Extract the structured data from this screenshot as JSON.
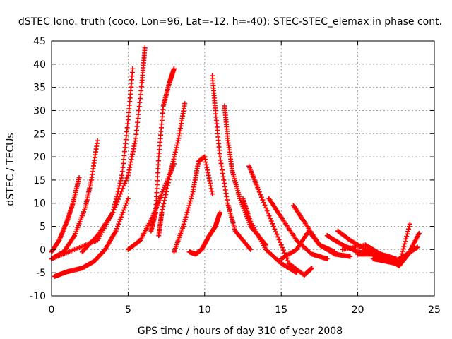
{
  "chart_data": {
    "type": "scatter",
    "title": "dSTEC Iono. truth (coco, Lon=96, Lat=-12, h=-40): STEC-STEC_elemax in phase cont.",
    "xlabel": "GPS time / hours of day 310 of year 2008",
    "ylabel": "dSTEC  / TECUs",
    "xlim": [
      0,
      25
    ],
    "ylim": [
      -10,
      45
    ],
    "xticks": [
      0,
      5,
      10,
      15,
      20,
      25
    ],
    "yticks": [
      -10,
      -5,
      0,
      5,
      10,
      15,
      20,
      25,
      30,
      35,
      40,
      45
    ],
    "grid": true,
    "marker": "+",
    "color": "#ff0000",
    "series": [
      {
        "x": [
          0,
          0.5,
          1.0,
          1.4,
          1.8
        ],
        "y": [
          -0.5,
          2,
          6,
          10,
          15.5
        ]
      },
      {
        "x": [
          0,
          0.8,
          1.5,
          2.2,
          2.6,
          3.0
        ],
        "y": [
          -2,
          -0.5,
          3,
          9,
          15,
          23.5
        ]
      },
      {
        "x": [
          0.2,
          1.0,
          2.0,
          2.8,
          3.5,
          4.2,
          5.0
        ],
        "y": [
          -5.8,
          -4.8,
          -4,
          -2.5,
          0,
          4,
          11
        ]
      },
      {
        "x": [
          0,
          1.5,
          3.0,
          4.0,
          4.6,
          5.0,
          5.3
        ],
        "y": [
          -2,
          0,
          2,
          8,
          16,
          28,
          39
        ]
      },
      {
        "x": [
          2.0,
          3.0,
          4.0,
          5.0,
          5.5,
          5.9,
          6.1
        ],
        "y": [
          -0.5,
          3,
          8,
          16,
          24,
          36,
          43.5
        ]
      },
      {
        "x": [
          5.0,
          5.8,
          6.6,
          7.2,
          8.0
        ],
        "y": [
          0,
          2,
          7,
          12,
          18.5
        ]
      },
      {
        "x": [
          6.5,
          6.8,
          7.0,
          7.3,
          7.7,
          8.0
        ],
        "y": [
          4,
          8,
          20,
          31,
          36,
          39
        ]
      },
      {
        "x": [
          7.0,
          7.2,
          7.8,
          8.3,
          8.7
        ],
        "y": [
          3,
          8,
          17,
          24,
          31.5
        ]
      },
      {
        "x": [
          9.0,
          9.4,
          9.8,
          10.3,
          10.7,
          11.0
        ],
        "y": [
          -0.5,
          -1,
          0,
          3,
          5,
          8
        ]
      },
      {
        "x": [
          8.0,
          8.6,
          9.2,
          9.6,
          10.0,
          10.5
        ],
        "y": [
          -0.5,
          5,
          12,
          19,
          20,
          12
        ]
      },
      {
        "x": [
          10.5,
          10.7,
          11.0,
          11.5,
          12.0,
          13.0
        ],
        "y": [
          37.5,
          30,
          20,
          10,
          4,
          0
        ]
      },
      {
        "x": [
          11.3,
          11.5,
          11.8,
          12.3,
          13.0,
          14.0
        ],
        "y": [
          31,
          24,
          17,
          11,
          5,
          1
        ]
      },
      {
        "x": [
          12.5,
          13.0,
          14.0,
          15.0,
          16.0
        ],
        "y": [
          11,
          6,
          0,
          -3,
          -5
        ]
      },
      {
        "x": [
          12.9,
          13.5,
          14.5,
          15.5,
          16.5,
          17.0
        ],
        "y": [
          18,
          13,
          5,
          -3,
          -5.5,
          -4
        ]
      },
      {
        "x": [
          14.2,
          15.0,
          16.0,
          17.0,
          18.0
        ],
        "y": [
          11,
          7,
          2,
          -1,
          -2
        ]
      },
      {
        "x": [
          15.8,
          16.5,
          17.5,
          18.5,
          19.5
        ],
        "y": [
          9.5,
          6,
          1,
          -1,
          -1.5
        ]
      },
      {
        "x": [
          15.0,
          16.0,
          16.8,
          17.5,
          18.5
        ],
        "y": [
          -2,
          0,
          4,
          1,
          -0.5
        ]
      },
      {
        "x": [
          18.0,
          19.0,
          20.0,
          21.0,
          22.0
        ],
        "y": [
          3,
          1,
          -0.5,
          -1,
          -1.5
        ]
      },
      {
        "x": [
          18.7,
          19.5,
          20.5,
          21.5,
          22.5
        ],
        "y": [
          4,
          2,
          0,
          -1,
          -2
        ]
      },
      {
        "x": [
          19.0,
          20.5,
          21.5,
          22.3,
          22.8,
          23.4
        ],
        "y": [
          0,
          1,
          -1,
          -2.5,
          -2,
          5.5
        ]
      },
      {
        "x": [
          20.0,
          21.0,
          22.0,
          22.7,
          23.3,
          24.0
        ],
        "y": [
          -1,
          -1,
          -2,
          -3.5,
          -1,
          3.5
        ]
      },
      {
        "x": [
          21.0,
          21.8,
          22.5,
          23.2,
          23.9
        ],
        "y": [
          -2,
          -2.5,
          -3,
          -1,
          0.5
        ]
      }
    ]
  }
}
